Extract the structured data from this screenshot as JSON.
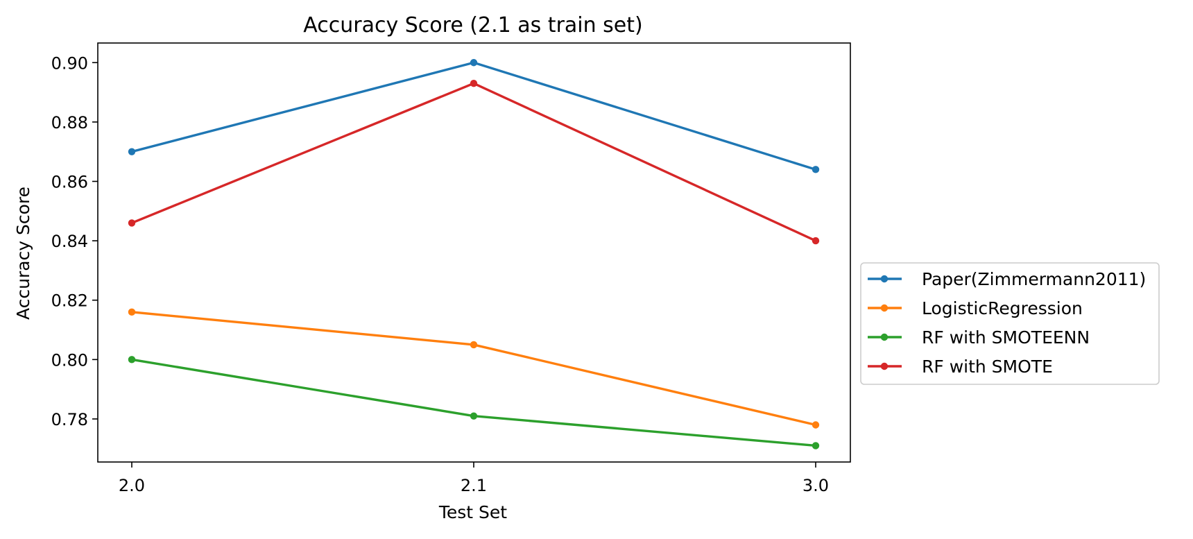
{
  "chart_data": {
    "type": "line",
    "title": "Accuracy Score (2.1 as train set)",
    "xlabel": "Test Set",
    "ylabel": "Accuracy Score",
    "categories": [
      "2.0",
      "2.1",
      "3.0"
    ],
    "ylim": [
      0.7655,
      0.9066
    ],
    "yticks": [
      0.78,
      0.8,
      0.82,
      0.84,
      0.86,
      0.88,
      0.9
    ],
    "ytick_labels": [
      "0.78",
      "0.80",
      "0.82",
      "0.84",
      "0.86",
      "0.88",
      "0.90"
    ],
    "legend_position": "center-right outside",
    "grid": false,
    "series": [
      {
        "name": "Paper(Zimmermann2011)",
        "color": "#1f77b4",
        "values": [
          0.87,
          0.9,
          0.864
        ]
      },
      {
        "name": "LogisticRegression",
        "color": "#ff7f0e",
        "values": [
          0.816,
          0.805,
          0.778
        ]
      },
      {
        "name": "RF with SMOTEENN",
        "color": "#2ca02c",
        "values": [
          0.8,
          0.781,
          0.771
        ]
      },
      {
        "name": "RF with SMOTE",
        "color": "#d62728",
        "values": [
          0.846,
          0.893,
          0.84
        ]
      }
    ]
  }
}
